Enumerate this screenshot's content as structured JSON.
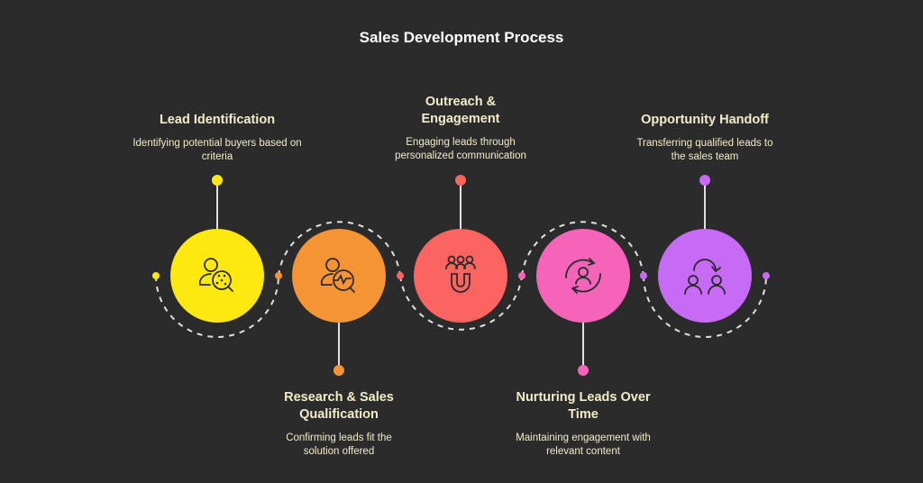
{
  "title": "Sales Development Process",
  "colors": {
    "background": "#2b2b2b",
    "text": "#f3ecc8",
    "connector": "#e0e0e0"
  },
  "steps": [
    {
      "title": "Lead Identification",
      "description": "Identifying potential buyers based on criteria",
      "color": "#fde910",
      "icon": "user-search-dots-icon",
      "label_position": "top"
    },
    {
      "title": "Research & Sales Qualification",
      "description": "Confirming leads fit the solution offered",
      "color": "#f59434",
      "icon": "user-search-chart-icon",
      "label_position": "bottom"
    },
    {
      "title": "Outreach & Engagement",
      "description": "Engaging leads through personalized communication",
      "color": "#fb6461",
      "icon": "magnet-people-icon",
      "label_position": "top"
    },
    {
      "title": "Nurturing Leads Over Time",
      "description": "Maintaining engagement with relevant content",
      "color": "#f664b9",
      "icon": "user-cycle-icon",
      "label_position": "bottom"
    },
    {
      "title": "Opportunity Handoff",
      "description": "Transferring qualified leads to the sales team",
      "color": "#c76af6",
      "icon": "user-handoff-icon",
      "label_position": "top"
    }
  ]
}
